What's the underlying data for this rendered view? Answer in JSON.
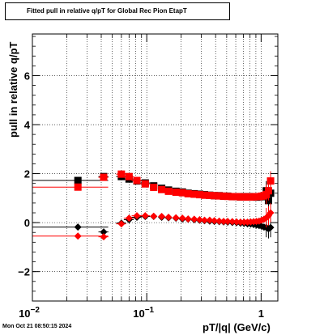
{
  "chart_data": {
    "type": "scatter",
    "title": "Fitted pull in relative q/pT for Global Rec Pion EtapT",
    "xlabel": "pT/|q| (GeV/c)",
    "ylabel": "pull in relative q/pT",
    "x_scale": "log",
    "xlim": [
      0.01,
      1.4
    ],
    "ylim": [
      -3.2,
      7.7
    ],
    "x_ticks": [
      {
        "value": 0.01,
        "label": "10^-2",
        "base": "10",
        "exp": "−2"
      },
      {
        "value": 0.1,
        "label": "10^-1",
        "base": "10",
        "exp": "−1"
      },
      {
        "value": 1,
        "label": "1",
        "base": "1",
        "exp": ""
      }
    ],
    "y_ticks": [
      -2,
      0,
      2,
      4,
      6
    ],
    "grid": true,
    "colors": {
      "series_a": "#000000",
      "series_b": "#ff0000"
    },
    "series": [
      {
        "marker": "square",
        "color": "#000000",
        "x": [
          0.025,
          0.042,
          0.06,
          0.07,
          0.082,
          0.097,
          0.115,
          0.135,
          0.155,
          0.18,
          0.205,
          0.23,
          0.26,
          0.29,
          0.32,
          0.355,
          0.39,
          0.43,
          0.47,
          0.51,
          0.56,
          0.61,
          0.66,
          0.71,
          0.76,
          0.81,
          0.86,
          0.91,
          0.96,
          1.01,
          1.06,
          1.11,
          1.16,
          1.21
        ],
        "y": [
          1.72,
          1.88,
          1.88,
          1.78,
          1.7,
          1.62,
          1.5,
          1.4,
          1.33,
          1.28,
          1.25,
          1.2,
          1.18,
          1.16,
          1.14,
          1.12,
          1.1,
          1.1,
          1.08,
          1.08,
          1.06,
          1.06,
          1.05,
          1.06,
          1.05,
          1.06,
          1.05,
          1.04,
          1.05,
          1.06,
          1.08,
          1.3,
          0.9,
          1.2
        ]
      },
      {
        "marker": "square",
        "color": "#ff0000",
        "x": [
          0.025,
          0.042,
          0.06,
          0.07,
          0.082,
          0.097,
          0.115,
          0.135,
          0.155,
          0.18,
          0.205,
          0.23,
          0.26,
          0.29,
          0.32,
          0.355,
          0.39,
          0.43,
          0.47,
          0.51,
          0.56,
          0.61,
          0.66,
          0.71,
          0.76,
          0.81,
          0.86,
          0.91,
          0.96,
          1.01,
          1.06,
          1.11,
          1.16,
          1.21
        ],
        "y": [
          1.45,
          1.85,
          1.98,
          1.88,
          1.72,
          1.58,
          1.44,
          1.35,
          1.28,
          1.24,
          1.22,
          1.18,
          1.16,
          1.14,
          1.12,
          1.11,
          1.1,
          1.09,
          1.08,
          1.07,
          1.06,
          1.06,
          1.05,
          1.05,
          1.05,
          1.05,
          1.05,
          1.06,
          1.06,
          1.08,
          1.1,
          1.15,
          1.3,
          1.7
        ]
      },
      {
        "marker": "diamond",
        "color": "#000000",
        "x": [
          0.025,
          0.042,
          0.06,
          0.07,
          0.082,
          0.097,
          0.115,
          0.135,
          0.155,
          0.18,
          0.205,
          0.23,
          0.26,
          0.29,
          0.32,
          0.355,
          0.39,
          0.43,
          0.47,
          0.51,
          0.56,
          0.61,
          0.66,
          0.71,
          0.76,
          0.81,
          0.86,
          0.91,
          0.96,
          1.01,
          1.06,
          1.11,
          1.16,
          1.21
        ],
        "y": [
          -0.18,
          -0.38,
          -0.02,
          0.12,
          0.22,
          0.25,
          0.25,
          0.22,
          0.2,
          0.18,
          0.15,
          0.14,
          0.12,
          0.1,
          0.08,
          0.06,
          0.05,
          0.04,
          0.03,
          0.02,
          0.01,
          0.0,
          -0.02,
          -0.03,
          -0.05,
          -0.06,
          -0.08,
          -0.1,
          -0.12,
          -0.15,
          -0.18,
          -0.2,
          -0.25,
          -0.2
        ]
      },
      {
        "marker": "diamond",
        "color": "#ff0000",
        "x": [
          0.025,
          0.042,
          0.06,
          0.07,
          0.082,
          0.097,
          0.115,
          0.135,
          0.155,
          0.18,
          0.205,
          0.23,
          0.26,
          0.29,
          0.32,
          0.355,
          0.39,
          0.43,
          0.47,
          0.51,
          0.56,
          0.61,
          0.66,
          0.71,
          0.76,
          0.81,
          0.86,
          0.91,
          0.96,
          1.01,
          1.06,
          1.11,
          1.16,
          1.21
        ],
        "y": [
          -0.55,
          -0.58,
          -0.05,
          0.18,
          0.28,
          0.28,
          0.26,
          0.25,
          0.22,
          0.2,
          0.18,
          0.15,
          0.14,
          0.12,
          0.1,
          0.1,
          0.08,
          0.06,
          0.05,
          0.05,
          0.04,
          0.03,
          0.02,
          0.02,
          0.02,
          0.03,
          0.04,
          0.05,
          0.06,
          0.1,
          0.14,
          0.2,
          0.28,
          0.4
        ]
      }
    ]
  },
  "footer": {
    "timestamp": "Mon Oct 21 08:50:15 2024"
  }
}
